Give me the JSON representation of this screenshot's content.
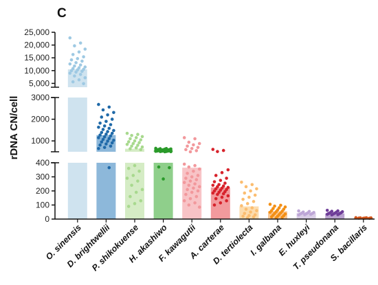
{
  "chart_data": {
    "type": "bar",
    "panel_label": "C",
    "ylabel": "rDNA CN/cell",
    "xlabel": "",
    "y_scale": "broken",
    "segments": [
      {
        "range": [
          0,
          400
        ],
        "ticks": [
          0,
          100,
          200,
          300,
          400
        ]
      },
      {
        "range": [
          500,
          3000
        ],
        "ticks": [
          1000,
          2000,
          3000
        ]
      },
      {
        "range": [
          3500,
          25000
        ],
        "ticks": [
          5000,
          10000,
          15000,
          20000,
          25000
        ]
      }
    ],
    "tick_labels": {
      "0": "0",
      "100": "100",
      "200": "200",
      "300": "300",
      "400": "400",
      "1000": "1000",
      "2000": "2000",
      "3000": "3000",
      "5000": "5,000",
      "10000": "10,000",
      "15000": "15,000",
      "20000": "20,000",
      "25000": "25,000"
    },
    "grid": false,
    "legend": "none",
    "categories": [
      "O. sinensis",
      "D. brightwellii",
      "P. shikokuense",
      "H. akashiwo",
      "F. kawagutii",
      "A. carterae",
      "D. tertiolecta",
      "I. galbana",
      "E. huxleyi",
      "T. pseudonana",
      "S. bacillaris"
    ],
    "values": [
      10500,
      1270,
      640,
      550,
      365,
      225,
      90,
      55,
      42,
      40,
      8
    ],
    "bar_colors": [
      "#cfe3ef",
      "#8db8da",
      "#d5ecc5",
      "#8fcf8b",
      "#f8c3c6",
      "#f29a9d",
      "#fcdcae",
      "#fbc792",
      "#d9cde6",
      "#b9a2cf",
      "#e9a48a"
    ],
    "point_colors": [
      "#9ec9e3",
      "#1f69a8",
      "#a8d98e",
      "#2a9a2a",
      "#f2989c",
      "#d7222b",
      "#fbbd70",
      "#f39016",
      "#bda6d6",
      "#6e3d98",
      "#d0551b"
    ],
    "points": [
      [
        22800,
        20800,
        19700,
        18400,
        17300,
        16300,
        15400,
        14700,
        14200,
        13700,
        13100,
        12600,
        12200,
        11800,
        11400,
        11100,
        10800,
        10500,
        10300,
        10000,
        9700,
        9400,
        9000,
        8500,
        7900,
        7200,
        6400,
        5600,
        4900
      ],
      [
        2680,
        2560,
        2430,
        2310,
        2200,
        2100,
        2000,
        1900,
        1820,
        1750,
        1690,
        1630,
        1580,
        1530,
        1480,
        1430,
        1390,
        1350,
        1310,
        1270,
        1230,
        1190,
        1150,
        1110,
        1070,
        1030,
        990,
        950,
        910,
        860,
        810,
        760,
        700,
        650,
        365
      ],
      [
        1350,
        1300,
        1250,
        1200,
        1150,
        1100,
        1050,
        1000,
        960,
        920,
        880,
        840,
        800,
        760,
        720,
        680,
        640,
        600,
        380,
        360,
        340,
        310,
        290,
        270,
        240,
        210,
        190,
        160,
        130,
        110,
        90
      ],
      [
        660,
        650,
        640,
        630,
        620,
        610,
        600,
        595,
        590,
        585,
        580,
        575,
        570,
        565,
        560,
        555,
        550,
        545,
        540,
        535,
        530,
        525,
        520,
        515,
        510,
        505,
        500,
        370,
        365,
        285
      ],
      [
        1150,
        1100,
        940,
        880,
        820,
        760,
        700,
        650,
        600,
        550,
        500,
        390,
        380,
        370,
        355,
        340,
        325,
        310,
        300,
        290,
        280,
        270,
        260,
        250,
        240,
        230,
        220,
        210,
        200,
        190,
        175,
        160,
        145,
        130,
        115,
        100,
        85
      ],
      [
        610,
        560,
        510,
        350,
        330,
        310,
        290,
        275,
        265,
        255,
        245,
        240,
        235,
        230,
        225,
        220,
        215,
        210,
        205,
        200,
        195,
        190,
        185,
        180,
        175,
        165,
        155,
        145,
        130,
        115,
        100
      ],
      [
        262,
        245,
        230,
        215,
        200,
        185,
        170,
        155,
        140,
        125,
        110,
        95,
        80,
        70,
        60,
        50,
        40,
        30,
        25,
        20,
        15,
        10
      ],
      [
        105,
        98,
        92,
        86,
        80,
        75,
        70,
        65,
        60,
        56,
        52,
        48,
        44,
        40,
        36,
        32,
        28,
        24,
        20,
        16,
        12,
        8
      ],
      [
        58,
        54,
        50,
        47,
        44,
        42,
        40,
        38,
        36,
        34,
        32,
        30
      ],
      [
        62,
        58,
        55,
        52,
        49,
        46,
        44,
        42,
        40,
        38,
        36,
        34,
        32,
        30
      ],
      [
        10,
        9,
        8,
        8,
        7,
        7,
        6,
        6
      ]
    ]
  }
}
